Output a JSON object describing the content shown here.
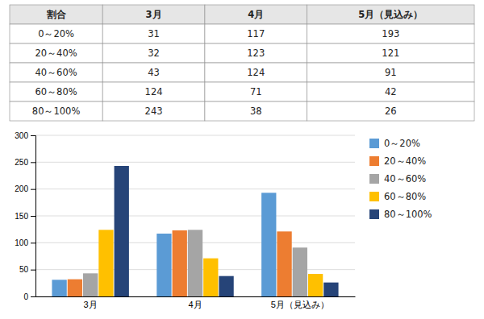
{
  "chart_data": {
    "type": "bar",
    "categories": [
      "3月",
      "4月",
      "5月（見込み）"
    ],
    "series": [
      {
        "name": "0～20%",
        "color": "#5B9BD5",
        "values": [
          31,
          117,
          193
        ]
      },
      {
        "name": "20～40%",
        "color": "#ED7D31",
        "values": [
          32,
          123,
          121
        ]
      },
      {
        "name": "40～60%",
        "color": "#A5A5A5",
        "values": [
          43,
          124,
          91
        ]
      },
      {
        "name": "60～80%",
        "color": "#FFC000",
        "values": [
          124,
          71,
          42
        ]
      },
      {
        "name": "80～100%",
        "color": "#264478",
        "values": [
          243,
          38,
          26
        ]
      }
    ],
    "ylim": [
      0,
      300
    ],
    "yticks": [
      0,
      50,
      100,
      150,
      200,
      250,
      300
    ],
    "grid": true,
    "legend": "right",
    "table": {
      "header": [
        "割合",
        "3月",
        "4月",
        "5月（見込み）"
      ],
      "rows": [
        [
          "0～20%",
          "31",
          "117",
          "193"
        ],
        [
          "20～40%",
          "32",
          "123",
          "121"
        ],
        [
          "40～60%",
          "43",
          "124",
          "91"
        ],
        [
          "60～80%",
          "124",
          "71",
          "42"
        ],
        [
          "80～100%",
          "243",
          "38",
          "26"
        ]
      ]
    }
  }
}
